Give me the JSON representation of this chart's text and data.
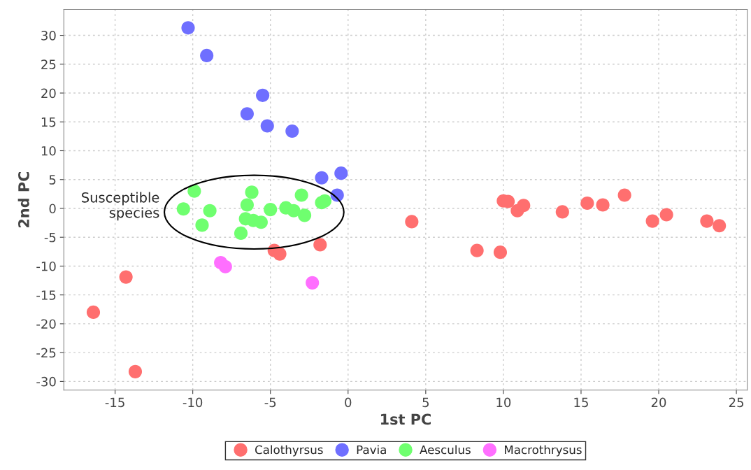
{
  "chart_data": {
    "type": "scatter",
    "xlabel": "1st PC",
    "ylabel": "2nd PC",
    "xlim": [
      -18.3,
      25.7
    ],
    "ylim": [
      -31.5,
      34.5
    ],
    "xticks": [
      -15,
      -10,
      -5,
      0,
      5,
      10,
      15,
      20,
      25
    ],
    "yticks": [
      -30,
      -25,
      -20,
      -15,
      -10,
      -5,
      0,
      5,
      10,
      15,
      20,
      25,
      30
    ],
    "grid": true,
    "legend": "bottom",
    "marker": "circle",
    "annotations": [
      "Susceptible species"
    ],
    "series": [
      {
        "name": "Calothyrsus",
        "color": "#ff6f6f",
        "x": [
          -16.4,
          -14.3,
          -13.7,
          -4.75,
          -4.4,
          -1.8,
          4.1,
          8.3,
          9.8,
          10.0,
          10.3,
          10.9,
          11.3,
          13.8,
          15.4,
          16.4,
          17.8,
          19.6,
          20.5,
          23.1,
          23.9
        ],
        "values": [
          -18.0,
          -11.9,
          -28.3,
          -7.3,
          -7.9,
          -6.3,
          -2.3,
          -7.3,
          -7.6,
          1.3,
          1.2,
          -0.4,
          0.5,
          -0.6,
          0.9,
          0.6,
          2.3,
          -2.2,
          -1.1,
          -2.2,
          -3.0
        ]
      },
      {
        "name": "Pavia",
        "color": "#6f6fff",
        "x": [
          -10.3,
          -9.1,
          -5.5,
          -6.5,
          -5.2,
          -3.6,
          -1.7,
          -0.45,
          -0.7
        ],
        "values": [
          31.3,
          26.5,
          19.6,
          16.4,
          14.3,
          13.4,
          5.3,
          6.1,
          2.3
        ]
      },
      {
        "name": "Aesculus",
        "color": "#6fff6f",
        "x": [
          -10.6,
          -9.9,
          -8.9,
          -9.4,
          -6.2,
          -6.5,
          -6.6,
          -6.9,
          -6.1,
          -5.6,
          -5.0,
          -4.0,
          -3.5,
          -3.0,
          -2.8,
          -1.7,
          -1.5
        ],
        "values": [
          -0.1,
          3.0,
          -0.4,
          -2.9,
          2.8,
          0.6,
          -1.8,
          -4.3,
          -2.1,
          -2.4,
          -0.2,
          0.1,
          -0.4,
          2.3,
          -1.2,
          1.0,
          1.3
        ]
      },
      {
        "name": "Macrothrysus",
        "color": "#ff6fff",
        "x": [
          -8.2,
          -7.9,
          -2.3
        ],
        "values": [
          -9.4,
          -10.1,
          -12.9
        ]
      }
    ]
  }
}
